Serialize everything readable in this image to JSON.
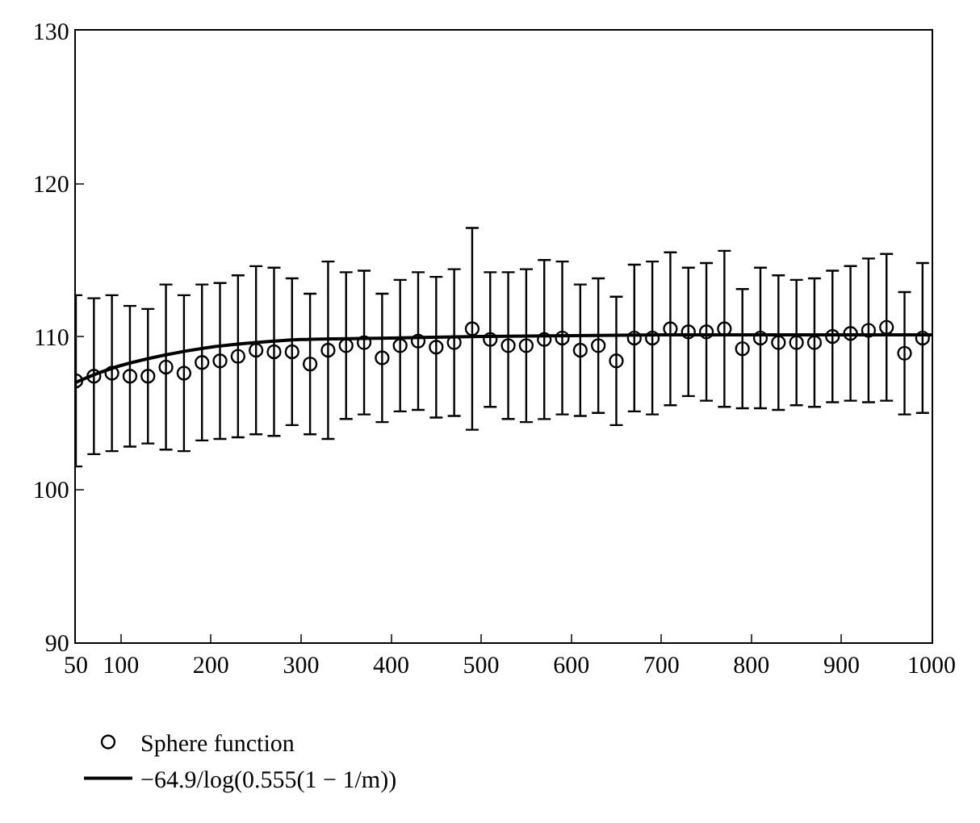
{
  "chart_data": {
    "type": "scatter",
    "xlim": [
      50,
      1000
    ],
    "ylim": [
      90,
      130
    ],
    "xticks": [
      50,
      100,
      200,
      300,
      400,
      500,
      600,
      700,
      800,
      900,
      1000
    ],
    "yticks": [
      90,
      100,
      110,
      120,
      130
    ],
    "legend": "bottom left",
    "series": [
      {
        "name": "Sphere function",
        "marker": "circle",
        "color": "#000000",
        "x": [
          50,
          70,
          90,
          110,
          130,
          150,
          170,
          190,
          210,
          230,
          250,
          270,
          290,
          310,
          330,
          350,
          370,
          390,
          410,
          430,
          450,
          470,
          490,
          510,
          530,
          550,
          570,
          590,
          610,
          630,
          650,
          670,
          690,
          710,
          730,
          750,
          770,
          790,
          810,
          830,
          850,
          870,
          890,
          910,
          930,
          950,
          970,
          990
        ],
        "values": [
          107.1,
          107.4,
          107.6,
          107.4,
          107.4,
          108.0,
          107.6,
          108.3,
          108.4,
          108.7,
          109.1,
          109.0,
          109.0,
          108.2,
          109.1,
          109.4,
          109.6,
          108.6,
          109.4,
          109.7,
          109.3,
          109.6,
          110.5,
          109.8,
          109.4,
          109.4,
          109.8,
          109.9,
          109.1,
          109.4,
          108.4,
          109.9,
          109.9,
          110.5,
          110.3,
          110.3,
          110.5,
          109.2,
          109.9,
          109.6,
          109.6,
          109.6,
          110.0,
          110.2,
          110.4,
          110.6,
          108.9,
          109.9
        ],
        "errors": [
          5.6,
          5.1,
          5.1,
          4.6,
          4.4,
          5.4,
          5.1,
          5.1,
          5.1,
          5.3,
          5.5,
          5.5,
          4.8,
          4.6,
          5.8,
          4.8,
          4.7,
          4.2,
          4.3,
          4.5,
          4.6,
          4.8,
          6.6,
          4.4,
          4.8,
          5.0,
          5.2,
          5.0,
          4.3,
          4.4,
          4.2,
          4.8,
          5.0,
          5.0,
          4.2,
          4.5,
          5.1,
          3.9,
          4.6,
          4.4,
          4.1,
          4.2,
          4.3,
          4.4,
          4.7,
          4.8,
          4.0,
          4.9
        ]
      },
      {
        "name": "−64.9/log(0.555(1 − 1/m))",
        "type": "line",
        "marker": "none",
        "line_style": "solid",
        "color": "#000000",
        "x": [
          50,
          75,
          100,
          150,
          200,
          250,
          300,
          400,
          500,
          700,
          1000
        ],
        "values": [
          107.0,
          107.6,
          108.1,
          108.8,
          109.3,
          109.6,
          109.8,
          109.9,
          110.0,
          110.1,
          110.1
        ]
      }
    ]
  }
}
